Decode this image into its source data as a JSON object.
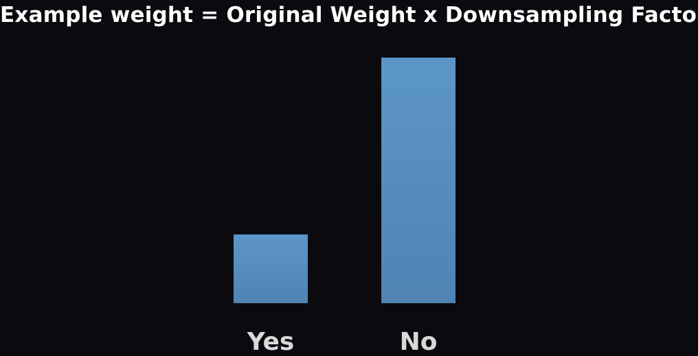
{
  "title": "Example weight = Original Weight x Downsampling Factor",
  "colors": {
    "background": "#0a0a0f",
    "bar": "#5b93c4",
    "text": "#ffffff",
    "label": "#d9d9d9"
  },
  "chart_data": {
    "type": "bar",
    "title": "Example weight = Original Weight x Downsampling Factor",
    "categories": [
      "Yes",
      "No"
    ],
    "values": [
      28,
      100
    ],
    "xlabel": "",
    "ylabel": "",
    "ylim": [
      0,
      100
    ],
    "grid": false,
    "legend": "none"
  }
}
